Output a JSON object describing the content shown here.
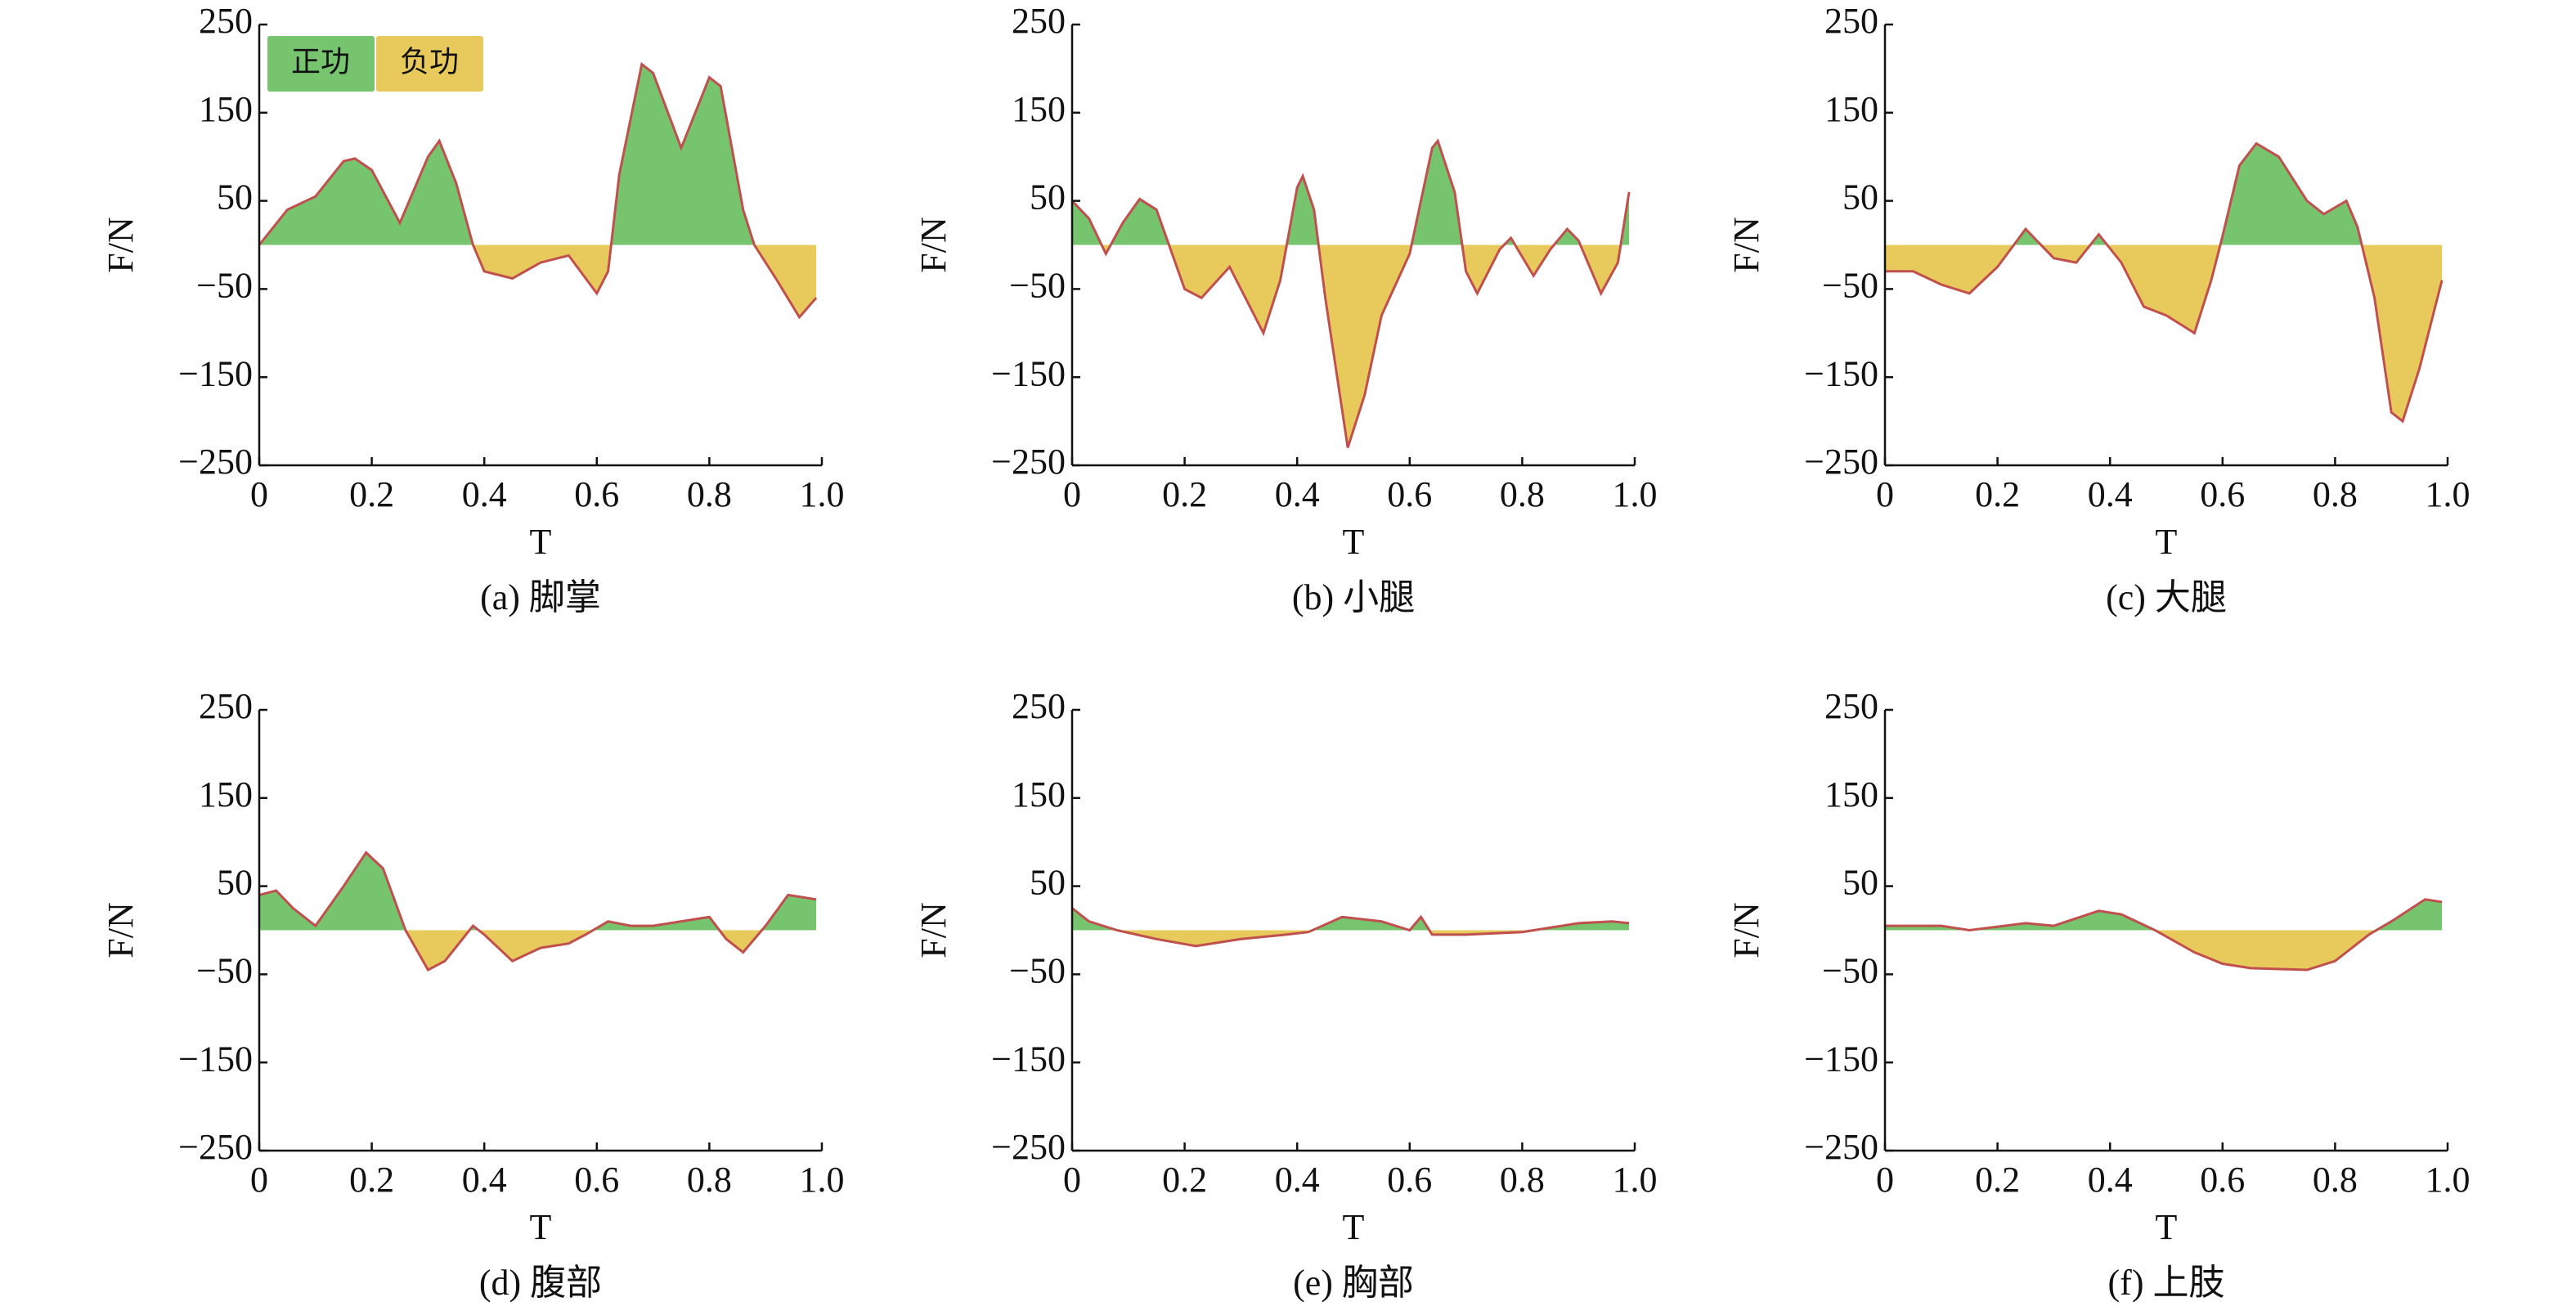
{
  "chart_data": [
    {
      "type": "area",
      "title": "(a) 脚掌",
      "x_label": "T",
      "y_label": "F/N",
      "legend": [
        {
          "label": "正功",
          "color": "#77c46f"
        },
        {
          "label": "负功",
          "color": "#e8c95c"
        }
      ],
      "pos_color": "#77c46f",
      "neg_color": "#e8c95c",
      "line_color": "#c0504d",
      "xlim": [
        0,
        1
      ],
      "ylim": [
        -250,
        250
      ],
      "xticks": [
        0,
        0.2,
        0.4,
        0.6,
        0.8,
        {
          "value": 1,
          "label": "1.0"
        }
      ],
      "yticks": [
        {
          "value": -250,
          "label": "−250"
        },
        {
          "value": -150,
          "label": "−150"
        },
        {
          "value": -50,
          "label": "−50"
        },
        50,
        150,
        250
      ],
      "x": [
        0,
        0.05,
        0.1,
        0.15,
        0.17,
        0.2,
        0.25,
        0.3,
        0.32,
        0.35,
        0.38,
        0.4,
        0.45,
        0.5,
        0.55,
        0.6,
        0.62,
        0.64,
        0.68,
        0.7,
        0.75,
        0.8,
        0.82,
        0.86,
        0.88,
        0.92,
        0.96,
        0.99
      ],
      "values": [
        0,
        40,
        55,
        95,
        98,
        85,
        25,
        100,
        118,
        70,
        0,
        -30,
        -38,
        -20,
        -12,
        -55,
        -30,
        80,
        205,
        195,
        110,
        190,
        180,
        40,
        0,
        -40,
        -82,
        -60
      ]
    },
    {
      "type": "area",
      "title": "(b) 小腿",
      "x_label": "T",
      "y_label": "F/N",
      "pos_color": "#77c46f",
      "neg_color": "#e8c95c",
      "line_color": "#c0504d",
      "xlim": [
        0,
        1
      ],
      "ylim": [
        -250,
        250
      ],
      "xticks": [
        0,
        0.2,
        0.4,
        0.6,
        0.8,
        {
          "value": 1,
          "label": "1.0"
        }
      ],
      "yticks": [
        {
          "value": -250,
          "label": "−250"
        },
        {
          "value": -150,
          "label": "−150"
        },
        {
          "value": -50,
          "label": "−50"
        },
        50,
        150,
        250
      ],
      "x": [
        0,
        0.03,
        0.06,
        0.09,
        0.12,
        0.15,
        0.2,
        0.23,
        0.28,
        0.34,
        0.37,
        0.4,
        0.41,
        0.43,
        0.45,
        0.49,
        0.52,
        0.55,
        0.6,
        0.64,
        0.65,
        0.68,
        0.7,
        0.72,
        0.76,
        0.78,
        0.82,
        0.85,
        0.88,
        0.9,
        0.94,
        0.97,
        0.99
      ],
      "values": [
        50,
        30,
        -10,
        25,
        52,
        40,
        -50,
        -60,
        -25,
        -100,
        -40,
        65,
        78,
        40,
        -60,
        -230,
        -170,
        -80,
        -10,
        110,
        118,
        60,
        -30,
        -55,
        -5,
        8,
        -35,
        -5,
        18,
        5,
        -55,
        -20,
        60
      ]
    },
    {
      "type": "area",
      "title": "(c) 大腿",
      "x_label": "T",
      "y_label": "F/N",
      "pos_color": "#77c46f",
      "neg_color": "#e8c95c",
      "line_color": "#c0504d",
      "xlim": [
        0,
        1
      ],
      "ylim": [
        -250,
        250
      ],
      "xticks": [
        0,
        0.2,
        0.4,
        0.6,
        0.8,
        {
          "value": 1,
          "label": "1.0"
        }
      ],
      "yticks": [
        {
          "value": -250,
          "label": "−250"
        },
        {
          "value": -150,
          "label": "−150"
        },
        {
          "value": -50,
          "label": "−50"
        },
        50,
        150,
        250
      ],
      "x": [
        0,
        0.05,
        0.1,
        0.15,
        0.2,
        0.25,
        0.3,
        0.34,
        0.38,
        0.42,
        0.46,
        0.5,
        0.55,
        0.58,
        0.6,
        0.63,
        0.66,
        0.7,
        0.75,
        0.78,
        0.82,
        0.84,
        0.87,
        0.9,
        0.92,
        0.95,
        0.99
      ],
      "values": [
        -30,
        -30,
        -45,
        -55,
        -25,
        18,
        -15,
        -20,
        12,
        -20,
        -70,
        -80,
        -100,
        -40,
        10,
        90,
        115,
        100,
        50,
        35,
        50,
        20,
        -60,
        -190,
        -200,
        -140,
        -40
      ]
    },
    {
      "type": "area",
      "title": "(d) 腹部",
      "x_label": "T",
      "y_label": "F/N",
      "pos_color": "#77c46f",
      "neg_color": "#e8c95c",
      "line_color": "#c0504d",
      "xlim": [
        0,
        1
      ],
      "ylim": [
        -250,
        250
      ],
      "xticks": [
        0,
        0.2,
        0.4,
        0.6,
        0.8,
        {
          "value": 1,
          "label": "1.0"
        }
      ],
      "yticks": [
        {
          "value": -250,
          "label": "−250"
        },
        {
          "value": -150,
          "label": "−150"
        },
        {
          "value": -50,
          "label": "−50"
        },
        50,
        150,
        250
      ],
      "x": [
        0,
        0.03,
        0.06,
        0.1,
        0.15,
        0.19,
        0.22,
        0.26,
        0.3,
        0.33,
        0.38,
        0.4,
        0.45,
        0.5,
        0.55,
        0.58,
        0.62,
        0.66,
        0.7,
        0.8,
        0.83,
        0.86,
        0.9,
        0.94,
        0.99
      ],
      "values": [
        40,
        45,
        25,
        5,
        50,
        88,
        70,
        0,
        -45,
        -35,
        5,
        -5,
        -35,
        -20,
        -15,
        -5,
        10,
        5,
        5,
        15,
        -10,
        -25,
        5,
        40,
        35
      ]
    },
    {
      "type": "area",
      "title": "(e) 胸部",
      "x_label": "T",
      "y_label": "F/N",
      "pos_color": "#77c46f",
      "neg_color": "#e8c95c",
      "line_color": "#c0504d",
      "xlim": [
        0,
        1
      ],
      "ylim": [
        -250,
        250
      ],
      "xticks": [
        0,
        0.2,
        0.4,
        0.6,
        0.8,
        {
          "value": 1,
          "label": "1.0"
        }
      ],
      "yticks": [
        {
          "value": -250,
          "label": "−250"
        },
        {
          "value": -150,
          "label": "−150"
        },
        {
          "value": -50,
          "label": "−50"
        },
        50,
        150,
        250
      ],
      "x": [
        0,
        0.03,
        0.08,
        0.15,
        0.22,
        0.3,
        0.38,
        0.42,
        0.48,
        0.55,
        0.6,
        0.62,
        0.64,
        0.7,
        0.8,
        0.9,
        0.96,
        0.99
      ],
      "values": [
        25,
        10,
        0,
        -10,
        -18,
        -10,
        -5,
        -2,
        15,
        10,
        0,
        15,
        -5,
        -5,
        -2,
        8,
        10,
        8
      ]
    },
    {
      "type": "area",
      "title": "(f) 上肢",
      "x_label": "T",
      "y_label": "F/N",
      "pos_color": "#77c46f",
      "neg_color": "#e8c95c",
      "line_color": "#c0504d",
      "xlim": [
        0,
        1
      ],
      "ylim": [
        -250,
        250
      ],
      "xticks": [
        0,
        0.2,
        0.4,
        0.6,
        0.8,
        {
          "value": 1,
          "label": "1.0"
        }
      ],
      "yticks": [
        {
          "value": -250,
          "label": "−250"
        },
        {
          "value": -150,
          "label": "−150"
        },
        {
          "value": -50,
          "label": "−50"
        },
        50,
        150,
        250
      ],
      "x": [
        0,
        0.1,
        0.15,
        0.25,
        0.3,
        0.38,
        0.42,
        0.48,
        0.55,
        0.6,
        0.65,
        0.75,
        0.8,
        0.86,
        0.9,
        0.96,
        0.99
      ],
      "values": [
        5,
        5,
        0,
        8,
        5,
        22,
        18,
        0,
        -25,
        -38,
        -43,
        -45,
        -35,
        -5,
        10,
        35,
        32
      ]
    }
  ]
}
